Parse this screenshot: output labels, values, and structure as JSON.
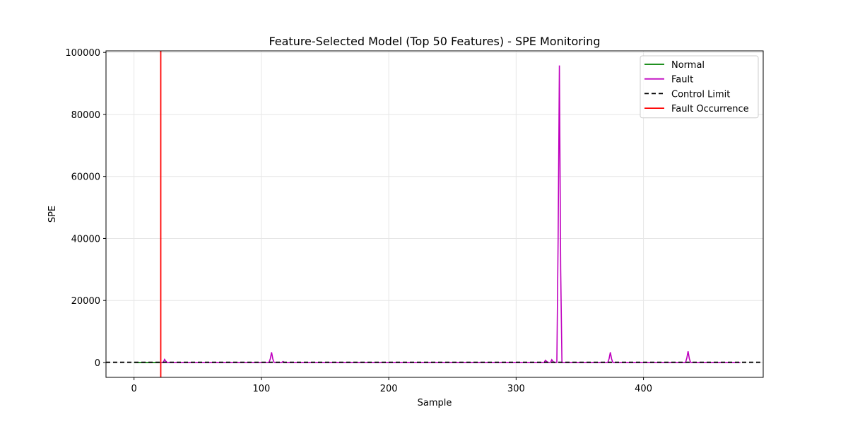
{
  "chart_data": {
    "type": "line",
    "title": "Feature-Selected Model (Top 50 Features) - SPE Monitoring",
    "xlabel": "Sample",
    "ylabel": "SPE",
    "xlim": [
      -22,
      494
    ],
    "ylim": [
      -4800,
      100500
    ],
    "xticks": [
      0,
      100,
      200,
      300,
      400
    ],
    "yticks": [
      0,
      20000,
      40000,
      60000,
      80000,
      100000
    ],
    "grid": true,
    "legend_position": "top-right",
    "series": [
      {
        "name": "Normal",
        "color": "#008000",
        "style": "solid",
        "x": [
          0,
          21
        ],
        "y": [
          0,
          0
        ]
      },
      {
        "name": "Fault",
        "color": "#bf00bf",
        "style": "solid",
        "x": [
          21,
          23,
          24,
          25,
          26,
          60,
          106,
          107,
          108,
          109,
          110,
          116,
          117,
          118,
          200,
          322,
          323,
          324,
          325,
          327,
          328,
          329,
          330,
          332,
          333,
          334,
          335,
          336,
          337,
          372,
          373,
          374,
          375,
          376,
          410,
          433,
          434,
          435,
          436,
          437,
          476
        ],
        "y": [
          0,
          0,
          1000,
          400,
          0,
          0,
          0,
          1200,
          3300,
          1100,
          0,
          0,
          300,
          0,
          0,
          0,
          700,
          300,
          0,
          0,
          900,
          300,
          0,
          0,
          40000,
          95800,
          30000,
          0,
          0,
          0,
          1200,
          3300,
          1100,
          0,
          0,
          0,
          1400,
          3600,
          1200,
          0,
          0
        ]
      },
      {
        "name": "Control Limit",
        "color": "#000000",
        "style": "dashed",
        "y_constant": 60
      },
      {
        "name": "Fault Occurrence",
        "color": "#ff0000",
        "style": "solid",
        "x_constant": 21
      }
    ]
  }
}
